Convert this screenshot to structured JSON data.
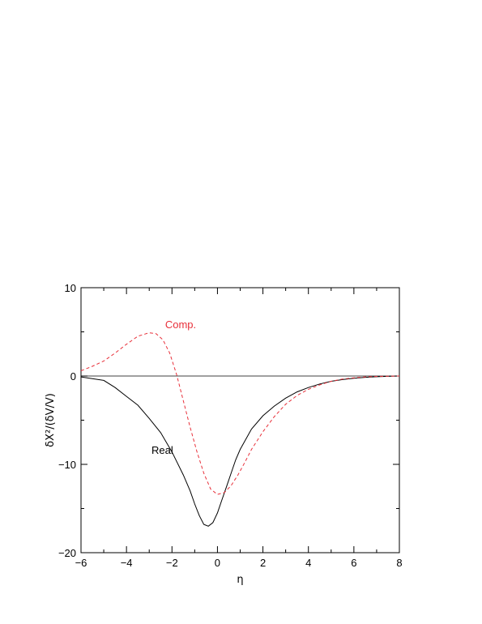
{
  "chart_data": {
    "type": "line",
    "xlabel": "η",
    "ylabel": "δX²/(δV/V)",
    "xlim": [
      -6,
      8
    ],
    "ylim": [
      -20,
      10
    ],
    "x_ticks": [
      -6,
      -4,
      -2,
      0,
      2,
      4,
      6,
      8
    ],
    "x_tick_labels": [
      "−6",
      "−4",
      "−2",
      "0",
      "2",
      "4",
      "6",
      "8"
    ],
    "y_ticks": [
      -20,
      -10,
      0,
      10
    ],
    "y_tick_labels": [
      "−20",
      "−10",
      "0",
      "10"
    ],
    "grid": false,
    "zero_line": true,
    "series": [
      {
        "name": "Real",
        "style": "solid",
        "color": "#000000",
        "x": [
          -6.0,
          -5.5,
          -5.0,
          -4.5,
          -4.0,
          -3.5,
          -3.0,
          -2.5,
          -2.0,
          -1.5,
          -1.2,
          -1.0,
          -0.8,
          -0.6,
          -0.4,
          -0.2,
          0.0,
          0.2,
          0.4,
          0.6,
          0.8,
          1.0,
          1.5,
          2.0,
          2.5,
          3.0,
          3.5,
          4.0,
          4.5,
          5.0,
          5.5,
          6.0,
          6.5,
          7.0,
          7.5,
          8.0
        ],
        "y": [
          -0.1,
          -0.3,
          -0.5,
          -1.3,
          -2.3,
          -3.3,
          -4.8,
          -6.4,
          -8.6,
          -11.2,
          -13.0,
          -14.5,
          -15.8,
          -16.8,
          -17.0,
          -16.6,
          -15.5,
          -14.0,
          -12.5,
          -11.0,
          -9.5,
          -8.3,
          -6.0,
          -4.5,
          -3.4,
          -2.5,
          -1.8,
          -1.3,
          -0.9,
          -0.6,
          -0.4,
          -0.25,
          -0.15,
          -0.08,
          -0.04,
          0.0
        ]
      },
      {
        "name": "Comp.",
        "style": "dashed",
        "color": "#e8303a",
        "x": [
          -6.0,
          -5.5,
          -5.0,
          -4.5,
          -4.0,
          -3.5,
          -3.0,
          -2.7,
          -2.4,
          -2.1,
          -1.8,
          -1.5,
          -1.2,
          -0.9,
          -0.6,
          -0.3,
          0.0,
          0.3,
          0.6,
          0.9,
          1.2,
          1.5,
          2.0,
          2.5,
          3.0,
          3.5,
          4.0,
          4.5,
          5.0,
          5.5,
          6.0,
          6.5,
          7.0,
          7.5,
          8.0
        ],
        "y": [
          0.6,
          1.1,
          1.7,
          2.6,
          3.6,
          4.5,
          4.9,
          4.8,
          4.1,
          2.6,
          0.2,
          -2.8,
          -5.8,
          -8.6,
          -11.0,
          -12.8,
          -13.4,
          -13.2,
          -12.4,
          -11.2,
          -9.8,
          -8.3,
          -6.3,
          -4.6,
          -3.2,
          -2.2,
          -1.5,
          -1.0,
          -0.6,
          -0.35,
          -0.2,
          -0.1,
          -0.05,
          -0.02,
          0.0
        ]
      }
    ],
    "annotations": [
      {
        "text": "Comp.",
        "x": -2.3,
        "y": 5.4,
        "color": "#e8303a"
      },
      {
        "text": "Real",
        "x": -2.9,
        "y": -8.8,
        "color": "#000000"
      }
    ]
  }
}
